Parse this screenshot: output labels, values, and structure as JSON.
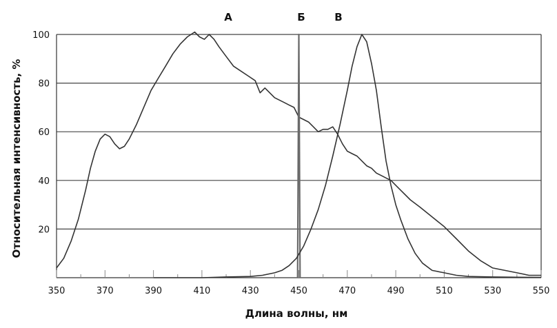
{
  "chart_data": {
    "type": "line",
    "title": "",
    "xlabel": "Длина волны, нм",
    "ylabel": "Относительная интенсивность, %",
    "xlim": [
      350,
      550
    ],
    "ylim": [
      0,
      100
    ],
    "x_ticks": [
      350,
      370,
      390,
      410,
      430,
      450,
      470,
      490,
      510,
      530,
      550
    ],
    "x_tick_labels": [
      "350",
      "370",
      "390",
      "410",
      "430",
      "",
      "470",
      "490",
      "510",
      "530",
      "550"
    ],
    "x_tick_label_450": "450",
    "y_ticks": [
      20,
      40,
      60,
      80,
      100
    ],
    "y_tick_labels": [
      "20",
      "40",
      "60",
      "80",
      "100"
    ],
    "grid": "horizontal",
    "series": [
      {
        "name": "А",
        "x": [
          350,
          353,
          356,
          359,
          362,
          364,
          366,
          368,
          370,
          372,
          374,
          376,
          378,
          380,
          383,
          386,
          389,
          392,
          395,
          398,
          401,
          404,
          407,
          409,
          411,
          413,
          415,
          417,
          420,
          423,
          426,
          429,
          432,
          434,
          436,
          438,
          440,
          442,
          444,
          446,
          448,
          450,
          452,
          454,
          456,
          458,
          460,
          462,
          464,
          466,
          468,
          470,
          472,
          474,
          476,
          478,
          480,
          482,
          484,
          486,
          488,
          490,
          492,
          494,
          496,
          500,
          505,
          510,
          515,
          520,
          525,
          530,
          535,
          540,
          545,
          550
        ],
        "y": [
          4,
          8,
          15,
          24,
          36,
          45,
          52,
          57,
          59,
          58,
          55,
          53,
          54,
          57,
          63,
          70,
          77,
          82,
          87,
          92,
          96,
          99,
          101,
          99,
          98,
          100,
          98,
          95,
          91,
          87,
          85,
          83,
          81,
          76,
          78,
          76,
          74,
          73,
          72,
          71,
          70,
          66,
          65,
          64,
          62,
          60,
          61,
          61,
          62,
          59,
          55,
          52,
          51,
          50,
          48,
          46,
          45,
          43,
          42,
          41,
          40,
          38,
          36,
          34,
          32,
          29,
          25,
          21,
          16,
          11,
          7,
          4,
          3,
          2,
          1,
          1
        ]
      },
      {
        "name": "Б",
        "x": [
          449.5,
          450,
          450.5
        ],
        "y": [
          0,
          100,
          0
        ]
      },
      {
        "name": "В",
        "x": [
          390,
          410,
          420,
          430,
          435,
          440,
          443,
          446,
          449,
          452,
          455,
          458,
          461,
          464,
          467,
          470,
          472,
          474,
          476,
          478,
          480,
          482,
          484,
          486,
          488,
          490,
          492,
          495,
          498,
          501,
          505,
          510,
          515,
          520,
          530,
          540,
          550
        ],
        "y": [
          0,
          0,
          0.3,
          0.5,
          1,
          2,
          3,
          5,
          8,
          13,
          20,
          28,
          38,
          50,
          63,
          77,
          87,
          95,
          100,
          97,
          88,
          77,
          62,
          48,
          38,
          30,
          24,
          16,
          10,
          6,
          3,
          2,
          1,
          0.5,
          0.3,
          0.2,
          0.1
        ]
      }
    ],
    "peak_labels": [
      {
        "text": "А",
        "x": 411
      },
      {
        "text": "Б",
        "x": 450
      },
      {
        "text": "В",
        "x": 467
      }
    ]
  }
}
